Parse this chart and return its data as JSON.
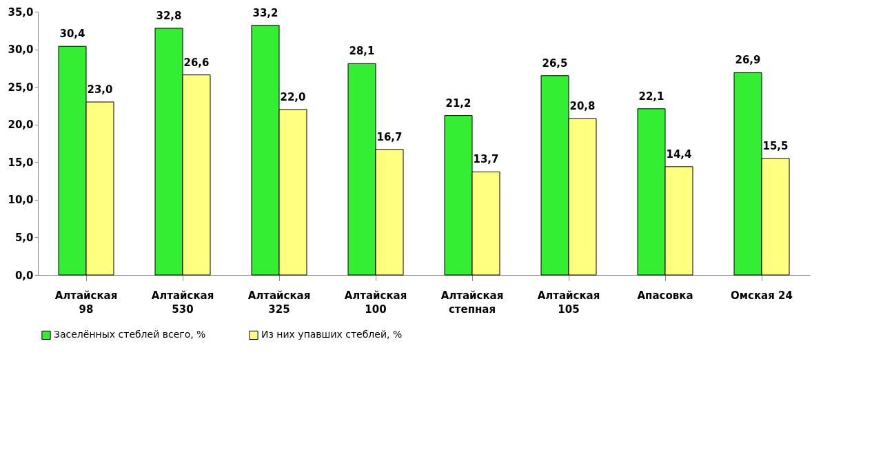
{
  "chart_data": {
    "type": "bar",
    "categories": [
      "Алтайская\n98",
      "Алтайская\n530",
      "Алтайская\n325",
      "Алтайская\n100",
      "Алтайская\nстепная",
      "Алтайская\n105",
      "Апасовка",
      "Омская 24"
    ],
    "series": [
      {
        "name": "Заселённых стеблей всего, %",
        "color": "#33ee33",
        "values": [
          30.4,
          32.8,
          33.2,
          28.1,
          21.2,
          26.5,
          22.1,
          26.9
        ],
        "value_labels": [
          "30,4",
          "32,8",
          "33,2",
          "28,1",
          "21,2",
          "26,5",
          "22,1",
          "26,9"
        ]
      },
      {
        "name": "Из них упавших стеблей, %",
        "color": "#ffff80",
        "values": [
          23.0,
          26.6,
          22.0,
          16.7,
          13.7,
          20.8,
          14.4,
          15.5
        ],
        "value_labels": [
          "23,0",
          "26,6",
          "22,0",
          "16,7",
          "13,7",
          "20,8",
          "14,4",
          "15,5"
        ]
      }
    ],
    "ylim": [
      0,
      35
    ],
    "yticks": [
      {
        "value": 0,
        "label": "0,0"
      },
      {
        "value": 5,
        "label": "5,0"
      },
      {
        "value": 10,
        "label": "10,0"
      },
      {
        "value": 15,
        "label": "15,0"
      },
      {
        "value": 20,
        "label": "20,0"
      },
      {
        "value": 25,
        "label": "25,0"
      },
      {
        "value": 30,
        "label": "30,0"
      },
      {
        "value": 35,
        "label": "35,0"
      }
    ],
    "grid": false,
    "legend": "bottom"
  }
}
